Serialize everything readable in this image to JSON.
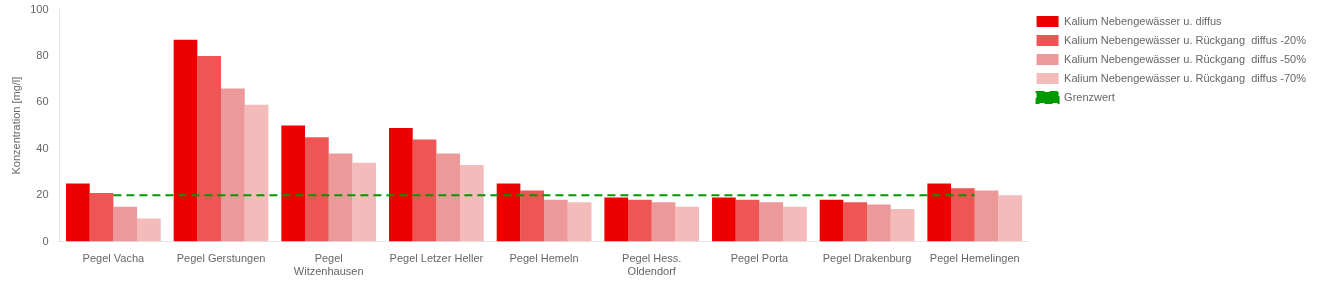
{
  "chart_data": {
    "type": "bar",
    "categories": [
      "Pegel Vacha",
      "Pegel Gerstungen",
      "Pegel\nWitzenhausen",
      "Pegel Letzer Heller",
      "Pegel Hemeln",
      "Pegel Hess.\nOldendorf",
      "Pegel Porta",
      "Pegel Drakenburg",
      "Pegel Hemelingen"
    ],
    "series": [
      {
        "name": "Kalium Nebengewässer u. diffus",
        "color": "#ee0000",
        "values": [
          25,
          87,
          50,
          49,
          25,
          19,
          19,
          18,
          25
        ]
      },
      {
        "name": "Kalium Nebengewässer u. Rückgang  diffus -20%",
        "color": "#ee5555",
        "values": [
          21,
          80,
          45,
          44,
          22,
          18,
          18,
          17,
          23
        ]
      },
      {
        "name": "Kalium Nebengewässer u. Rückgang  diffus -50%",
        "color": "#ee9999",
        "values": [
          15,
          66,
          38,
          38,
          18,
          17,
          17,
          16,
          22
        ]
      },
      {
        "name": "Kalium Nebengewässer u. Rückgang  diffus -70%",
        "color": "#f4bbbb",
        "values": [
          10,
          59,
          34,
          33,
          17,
          15,
          15,
          14,
          20
        ]
      },
      {
        "name": "Grenzwert",
        "type": "line",
        "color": "#009900",
        "line_style": "dashed",
        "values": [
          20,
          20,
          20,
          20,
          20,
          20,
          20,
          20,
          20
        ]
      }
    ],
    "ylabel": "Konzentration [mg/l]",
    "ylim": [
      0,
      100
    ],
    "yticks": [
      0,
      20,
      40,
      60,
      80,
      100
    ],
    "grid": false,
    "legend": "right"
  }
}
